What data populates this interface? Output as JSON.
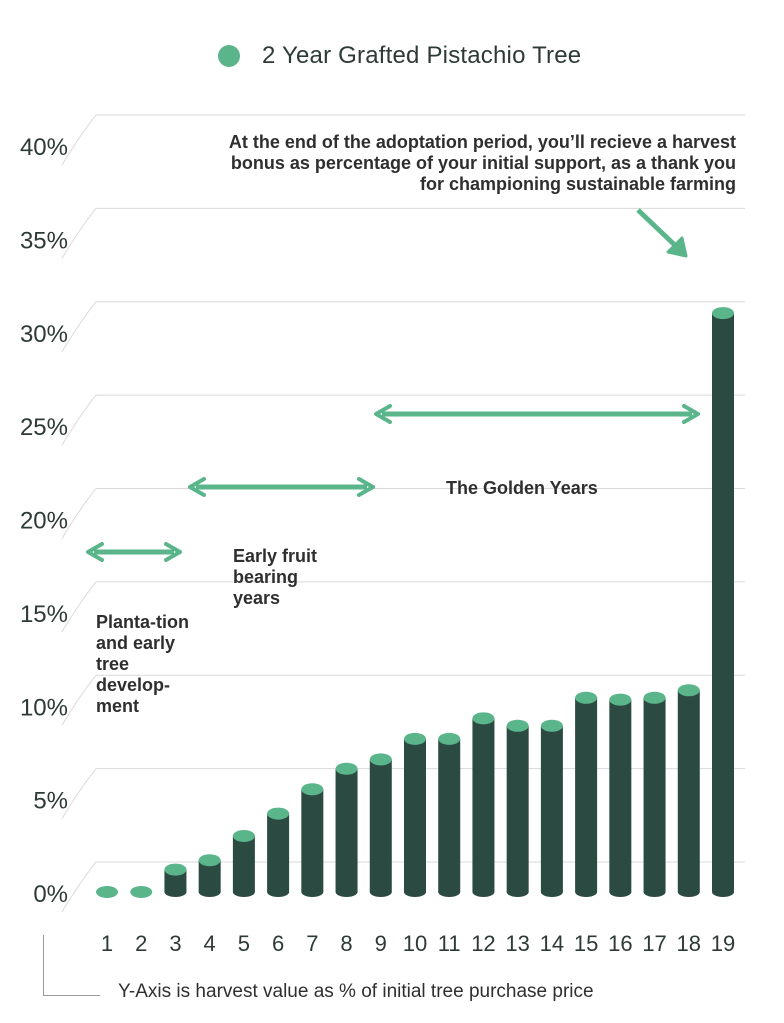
{
  "legend": {
    "label": "2 Year Grafted Pistachio Tree"
  },
  "colors": {
    "bar": "#2b4a42",
    "bar_top": "#5bb58b",
    "arrow": "#5bb58b",
    "grid": "#d9d9d9",
    "text": "#2b2b2b"
  },
  "annotations": {
    "top": "At the end of the adoptation period, you’ll recieve a harvest bonus as percentage of your initial support, as a thank you for championing sustainable farming",
    "plantation": "Planta-tion and early tree develop-ment",
    "early_fruit": "Early fruit bearing years",
    "golden": "The Golden Years"
  },
  "footnote": "Y-Axis is harvest value as % of initial tree purchase price",
  "chart_data": {
    "type": "bar",
    "categories": [
      "1",
      "2",
      "3",
      "4",
      "5",
      "6",
      "7",
      "8",
      "9",
      "10",
      "11",
      "12",
      "13",
      "14",
      "15",
      "16",
      "17",
      "18",
      "19"
    ],
    "series": [
      {
        "name": "2 Year Grafted Pistachio Tree",
        "values": [
          0,
          0,
          1.2,
          1.7,
          3.0,
          4.2,
          5.5,
          6.6,
          7.1,
          8.2,
          8.2,
          9.3,
          8.9,
          8.9,
          10.4,
          10.3,
          10.4,
          10.8,
          31.0
        ]
      }
    ],
    "ylim": [
      0,
      40
    ],
    "yticks": [
      "0%",
      "5%",
      "10%",
      "15%",
      "20%",
      "25%",
      "30%",
      "35%",
      "40%"
    ],
    "grid": true,
    "legend_position": "top-center",
    "xlabel": "",
    "ylabel": ""
  }
}
